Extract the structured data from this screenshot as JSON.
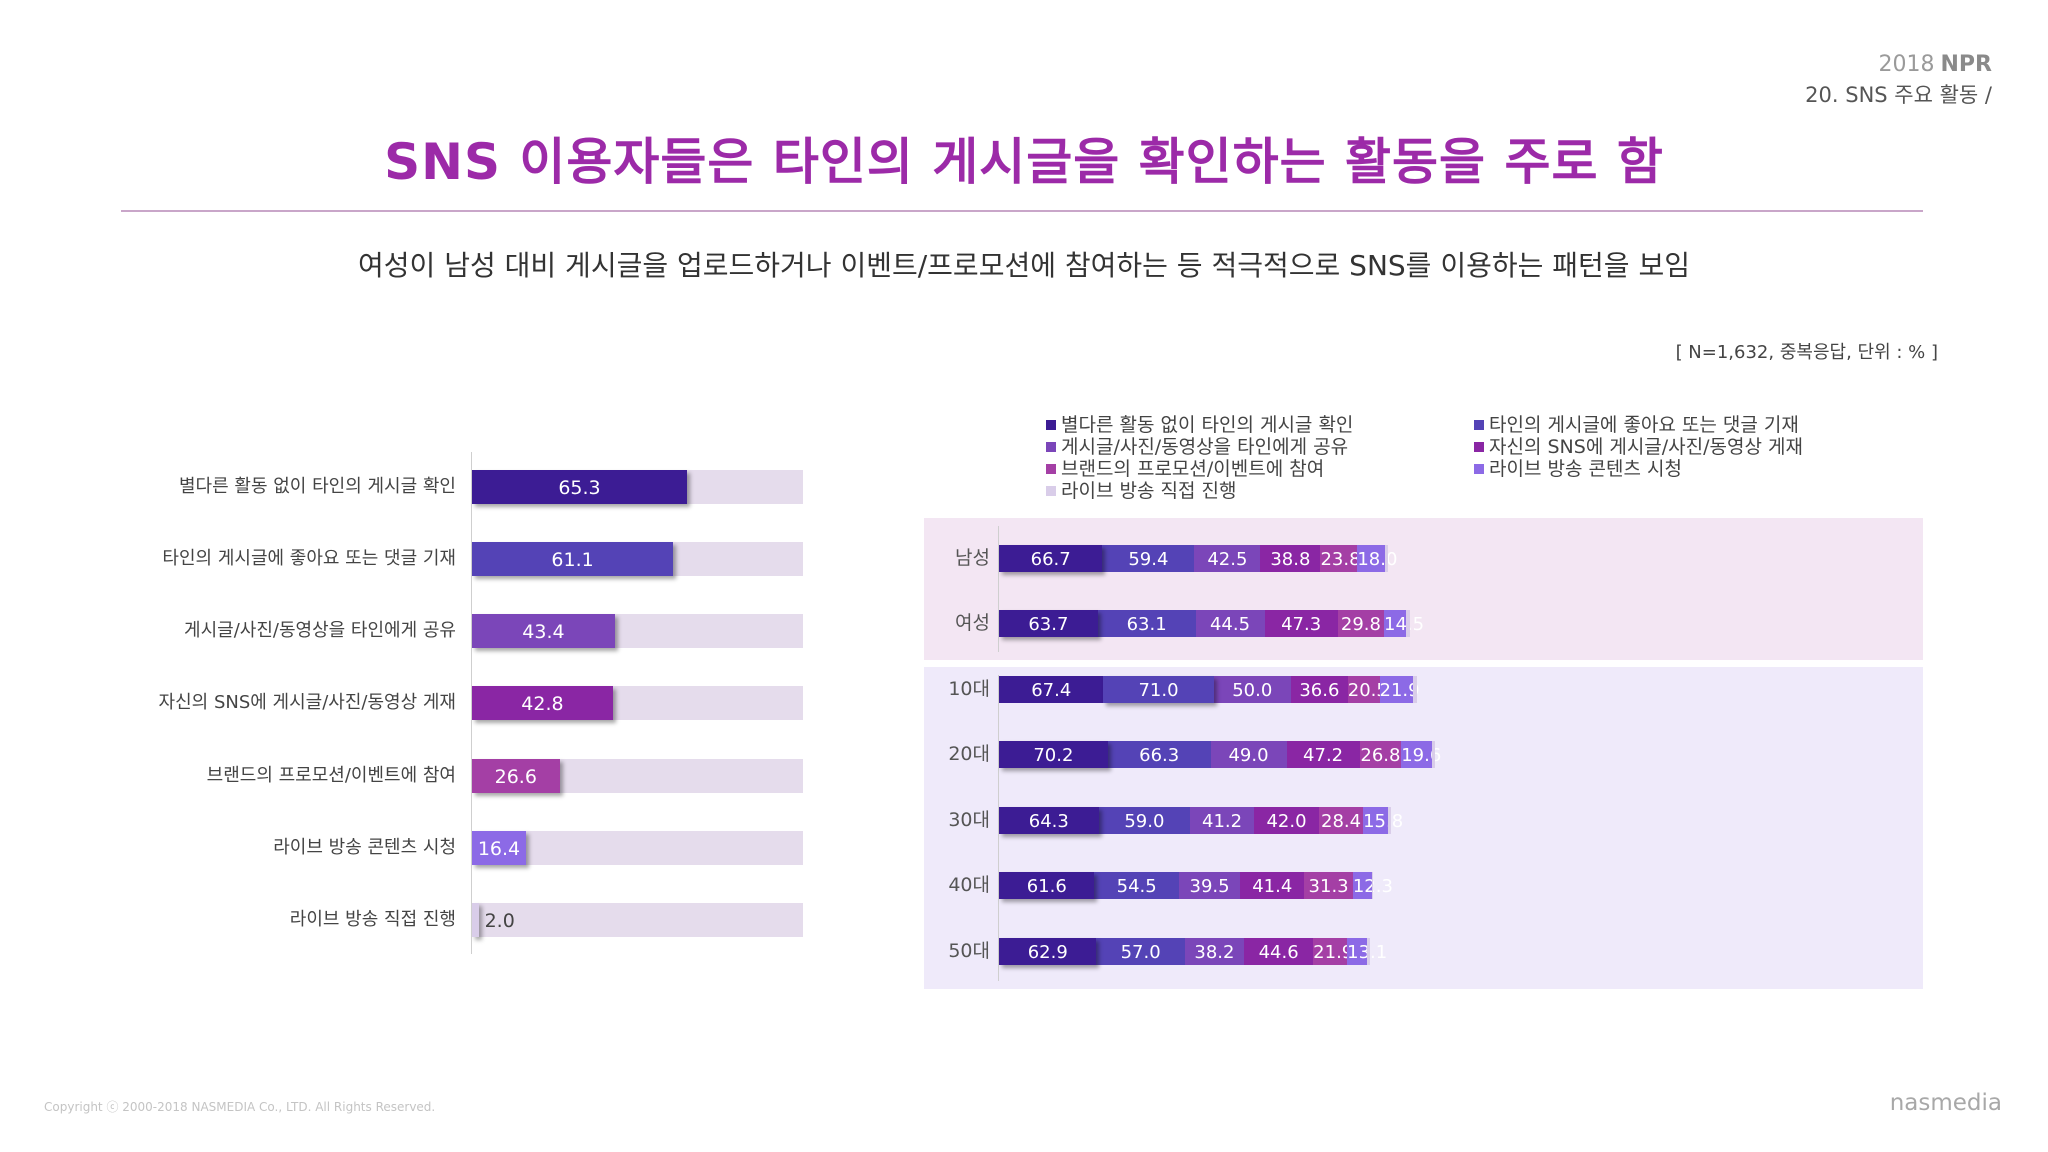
{
  "header": {
    "year": "2018",
    "brand": "NPR",
    "section": "20. SNS 주요 활동 /"
  },
  "title": "SNS 이용자들은 타인의 게시글을 확인하는 활동을 주로 함",
  "subtitle": "여성이 남성 대비 게시글을 업로드하거나 이벤트/프로모션에 참여하는 등 적극적으로 SNS를 이용하는 패턴을 보임",
  "note": "[ N=1,632, 중복응답, 단위 : % ]",
  "footer": {
    "copyright": "Copyright ⓒ 2000-2018  NASMEDIA Co., LTD. All Rights Reserved.",
    "logo": "nasmedia"
  },
  "colors": {
    "track": "#e5dcec",
    "series": [
      "#3c1c94",
      "#5443b6",
      "#7b46b9",
      "#8a26a4",
      "#a43fa5",
      "#8c6ae6",
      "#d9cde9"
    ]
  },
  "chart_data": [
    {
      "type": "bar",
      "orientation": "horizontal",
      "categories": [
        "별다른 활동 없이 타인의 게시글 확인",
        "타인의 게시글에 좋아요 또는 댓글 기재",
        "게시글/사진/동영상을 타인에게 공유",
        "자신의 SNS에 게시글/사진/동영상 게재",
        "브랜드의 프로모션/이벤트에 참여",
        "라이브 방송 콘텐츠 시청",
        "라이브 방송 직접 진행"
      ],
      "values": [
        65.3,
        61.1,
        43.4,
        42.8,
        26.6,
        16.4,
        2.0
      ],
      "labels": [
        "65.3",
        "61.1",
        "43.4",
        "42.8",
        "26.6",
        "16.4",
        "2.0"
      ],
      "xlim": [
        0,
        100
      ]
    },
    {
      "type": "bar",
      "orientation": "horizontal",
      "stacked": true,
      "legend_position": "top",
      "categories": [
        "남성",
        "여성",
        "10대",
        "20대",
        "30대",
        "40대",
        "50대"
      ],
      "series": [
        {
          "name": "별다른 활동 없이 타인의 게시글 확인",
          "values": [
            66.7,
            63.7,
            67.4,
            70.2,
            64.3,
            61.6,
            62.9
          ],
          "labels": [
            "66.7",
            "63.7",
            "67.4",
            "70.2",
            "64.3",
            "61.6",
            "62.9"
          ]
        },
        {
          "name": "타인의 게시글에 좋아요 또는 댓글 기재",
          "values": [
            59.4,
            63.1,
            71.0,
            66.3,
            59.0,
            54.5,
            57.0
          ],
          "labels": [
            "59.4",
            "63.1",
            "71.0",
            "66.3",
            "59.0",
            "54.5",
            "57.0"
          ]
        },
        {
          "name": "게시글/사진/동영상을 타인에게 공유",
          "values": [
            42.5,
            44.5,
            50.0,
            49.0,
            41.2,
            39.5,
            38.2
          ],
          "labels": [
            "42.5",
            "44.5",
            "50.0",
            "49.0",
            "41.2",
            "39.5",
            "38.2"
          ]
        },
        {
          "name": "자신의 SNS에 게시글/사진/동영상 게재",
          "values": [
            38.8,
            47.3,
            36.6,
            47.2,
            42.0,
            41.4,
            44.6
          ],
          "labels": [
            "38.8",
            "47.3",
            "36.6",
            "47.2",
            "42.0",
            "41.4",
            "44.6"
          ]
        },
        {
          "name": "브랜드의 프로모션/이벤트에 참여",
          "values": [
            23.8,
            29.8,
            20.5,
            26.8,
            28.4,
            31.3,
            21.9
          ],
          "labels": [
            "23.8",
            "29.8",
            "20.5",
            "26.8",
            "28.4",
            "31.3",
            "21.9"
          ]
        },
        {
          "name": "라이브 방송 콘텐츠 시청",
          "values": [
            18.0,
            14.5,
            21.9,
            19.6,
            15.8,
            12.3,
            13.1
          ],
          "labels": [
            "18.0",
            "14.5",
            "21.9",
            "19.6",
            "15.8",
            "12.3",
            "13.1"
          ]
        },
        {
          "name": "라이브 방송 직접 진행",
          "values": [
            1.5,
            2.0,
            2.0,
            2.5,
            2.0,
            1.0,
            1.5
          ],
          "labels": []
        }
      ]
    }
  ]
}
